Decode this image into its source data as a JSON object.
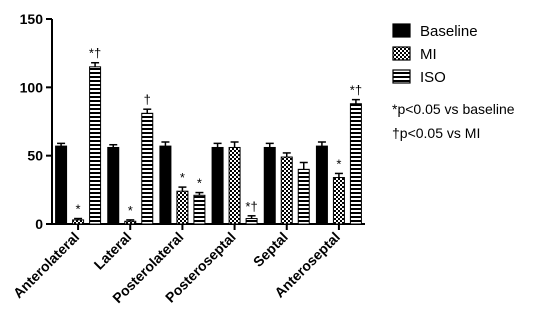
{
  "chart_data": {
    "type": "bar",
    "categories": [
      "Anterolateral",
      "Lateral",
      "Posterolateral",
      "Posteroseptal",
      "Septal",
      "Anteroseptal"
    ],
    "ylim": [
      0,
      150
    ],
    "yticks": [
      "0",
      "50",
      "100",
      "150"
    ],
    "series": [
      {
        "name": "Baseline",
        "pattern": "solid",
        "values": [
          57,
          56,
          57,
          56,
          56,
          57
        ],
        "errors": [
          2,
          2,
          3,
          3,
          3,
          3
        ]
      },
      {
        "name": "MI",
        "pattern": "checker",
        "values": [
          3,
          2,
          24,
          56,
          49,
          34
        ],
        "errors": [
          1,
          1,
          3,
          4,
          3,
          3
        ]
      },
      {
        "name": "ISO",
        "pattern": "striped",
        "values": [
          115,
          81,
          21,
          4,
          40,
          88
        ],
        "errors": [
          3,
          3,
          2,
          2,
          5,
          3
        ]
      }
    ],
    "annotations": [
      {
        "category": 0,
        "series": 1,
        "text": "*"
      },
      {
        "category": 0,
        "series": 2,
        "text": "*†"
      },
      {
        "category": 1,
        "series": 1,
        "text": "*"
      },
      {
        "category": 1,
        "series": 2,
        "text": "†"
      },
      {
        "category": 2,
        "series": 1,
        "text": "*"
      },
      {
        "category": 2,
        "series": 2,
        "text": "*"
      },
      {
        "category": 3,
        "series": 2,
        "text": "*†"
      },
      {
        "category": 5,
        "series": 1,
        "text": "*"
      },
      {
        "category": 5,
        "series": 2,
        "text": "*†"
      }
    ],
    "legend": [
      "Baseline",
      "MI",
      "ISO"
    ],
    "notes": [
      "*p<0.05 vs baseline",
      "†p<0.05 vs MI"
    ]
  }
}
